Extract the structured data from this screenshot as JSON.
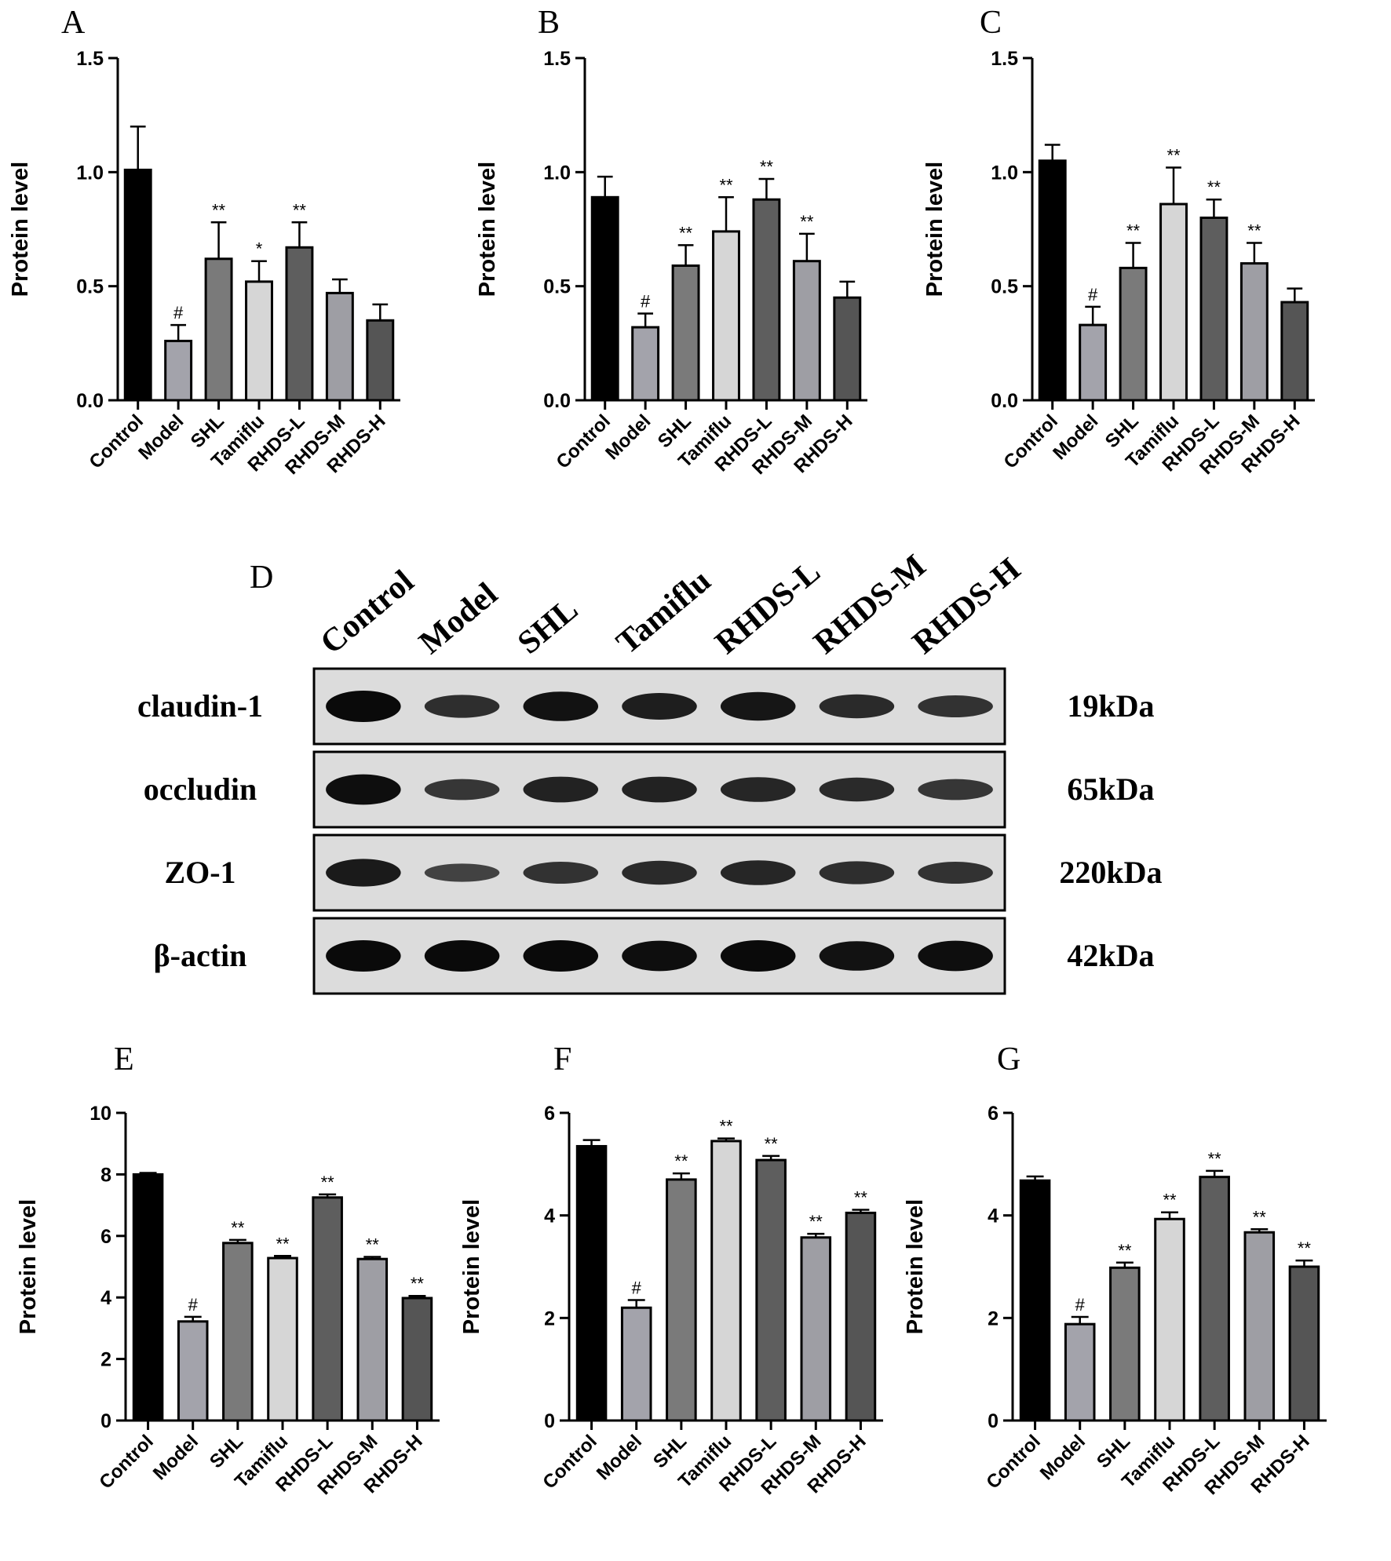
{
  "colors": {
    "Control": "#000000",
    "Model": "#a3a3ab",
    "SHL": "#7a7a7a",
    "Tamiflu": "#d6d6d6",
    "RHDS-L": "#5e5e5e",
    "RHDS-M": "#9e9ea4",
    "RHDS-H": "#555555"
  },
  "chart_data": [
    {
      "type": "bar",
      "panel": "A",
      "categories": [
        "Control",
        "Model",
        "SHL",
        "Tamiflu",
        "RHDS-L",
        "RHDS-M",
        "RHDS-H"
      ],
      "values": [
        1.01,
        0.26,
        0.62,
        0.52,
        0.67,
        0.47,
        0.35
      ],
      "errors": [
        0.19,
        0.07,
        0.16,
        0.09,
        0.11,
        0.06,
        0.07
      ],
      "significance": [
        "",
        "#",
        "**",
        "*",
        "**",
        "",
        ""
      ],
      "ylabel": "Protein level",
      "ylim": [
        0,
        1.5
      ],
      "yticks": [
        "0.0",
        "0.5",
        "1.0",
        "1.5"
      ]
    },
    {
      "type": "bar",
      "panel": "B",
      "categories": [
        "Control",
        "Model",
        "SHL",
        "Tamiflu",
        "RHDS-L",
        "RHDS-M",
        "RHDS-H"
      ],
      "values": [
        0.89,
        0.32,
        0.59,
        0.74,
        0.88,
        0.61,
        0.45
      ],
      "errors": [
        0.09,
        0.06,
        0.09,
        0.15,
        0.09,
        0.12,
        0.07
      ],
      "significance": [
        "",
        "#",
        "**",
        "**",
        "**",
        "**",
        ""
      ],
      "ylabel": "Protein level",
      "ylim": [
        0,
        1.5
      ],
      "yticks": [
        "0.0",
        "0.5",
        "1.0",
        "1.5"
      ]
    },
    {
      "type": "bar",
      "panel": "C",
      "categories": [
        "Control",
        "Model",
        "SHL",
        "Tamiflu",
        "RHDS-L",
        "RHDS-M",
        "RHDS-H"
      ],
      "values": [
        1.05,
        0.33,
        0.58,
        0.86,
        0.8,
        0.6,
        0.43
      ],
      "errors": [
        0.07,
        0.08,
        0.11,
        0.16,
        0.08,
        0.09,
        0.06
      ],
      "significance": [
        "",
        "#",
        "**",
        "**",
        "**",
        "**",
        ""
      ],
      "ylabel": "Protein level",
      "ylim": [
        0,
        1.5
      ],
      "yticks": [
        "0.0",
        "0.5",
        "1.0",
        "1.5"
      ]
    },
    {
      "type": "bar",
      "panel": "E",
      "categories": [
        "Control",
        "Model",
        "SHL",
        "Tamiflu",
        "RHDS-L",
        "RHDS-M",
        "RHDS-H"
      ],
      "values": [
        8.0,
        3.22,
        5.77,
        5.28,
        7.25,
        5.25,
        3.98
      ],
      "errors": [
        0.05,
        0.15,
        0.1,
        0.07,
        0.1,
        0.07,
        0.07
      ],
      "significance": [
        "",
        "#",
        "**",
        "**",
        "**",
        "**",
        "**"
      ],
      "ylabel": "Protein level",
      "ylim": [
        0,
        10
      ],
      "yticks": [
        "0",
        "2",
        "4",
        "6",
        "8",
        "10"
      ]
    },
    {
      "type": "bar",
      "panel": "F",
      "categories": [
        "Control",
        "Model",
        "SHL",
        "Tamiflu",
        "RHDS-L",
        "RHDS-M",
        "RHDS-H"
      ],
      "values": [
        5.35,
        2.2,
        4.7,
        5.45,
        5.08,
        3.57,
        4.05
      ],
      "errors": [
        0.12,
        0.15,
        0.12,
        0.05,
        0.08,
        0.07,
        0.06
      ],
      "significance": [
        "",
        "#",
        "**",
        "**",
        "**",
        "**",
        "**"
      ],
      "ylabel": "Protein level",
      "ylim": [
        0,
        6
      ],
      "yticks": [
        "0",
        "2",
        "4",
        "6"
      ]
    },
    {
      "type": "bar",
      "panel": "G",
      "categories": [
        "Control",
        "Model",
        "SHL",
        "Tamiflu",
        "RHDS-L",
        "RHDS-M",
        "RHDS-H"
      ],
      "values": [
        4.68,
        1.88,
        2.98,
        3.93,
        4.75,
        3.67,
        3.0
      ],
      "errors": [
        0.08,
        0.14,
        0.1,
        0.13,
        0.12,
        0.06,
        0.12
      ],
      "significance": [
        "",
        "#",
        "**",
        "**",
        "**",
        "**",
        "**"
      ],
      "ylabel": "Protein level",
      "ylim": [
        0,
        6
      ],
      "yticks": [
        "0",
        "2",
        "4",
        "6"
      ]
    }
  ],
  "blot": {
    "panel": "D",
    "lanes": [
      "Control",
      "Model",
      "SHL",
      "Tamiflu",
      "RHDS-L",
      "RHDS-M",
      "RHDS-H"
    ],
    "rows": [
      {
        "protein": "claudin-1",
        "kda": "19kDa",
        "intensity": [
          1.0,
          0.55,
          0.9,
          0.75,
          0.85,
          0.6,
          0.5
        ]
      },
      {
        "protein": "occludin",
        "kda": "65kDa",
        "intensity": [
          0.95,
          0.45,
          0.7,
          0.7,
          0.65,
          0.6,
          0.45
        ]
      },
      {
        "protein": "ZO-1",
        "kda": "220kDa",
        "intensity": [
          0.8,
          0.3,
          0.5,
          0.6,
          0.65,
          0.55,
          0.5
        ]
      },
      {
        "protein": "β-actin",
        "kda": "42kDa",
        "intensity": [
          1.0,
          1.0,
          1.0,
          0.95,
          1.0,
          0.9,
          0.95
        ]
      }
    ]
  }
}
